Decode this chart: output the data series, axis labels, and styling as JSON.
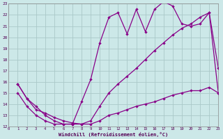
{
  "xlabel": "Windchill (Refroidissement éolien,°C)",
  "bg_color": "#cce8e8",
  "grid_color": "#aac8c8",
  "line_color": "#880088",
  "x_min": 0,
  "x_max": 23,
  "y_min": 12,
  "y_max": 23,
  "line1_x": [
    1,
    2,
    3,
    4,
    5,
    6,
    7,
    8,
    9,
    10,
    11,
    12,
    13,
    14,
    15,
    16,
    17,
    18,
    19,
    20,
    21,
    22,
    23
  ],
  "line1_y": [
    15.8,
    14.5,
    13.8,
    13.0,
    12.5,
    12.2,
    12.2,
    14.2,
    16.2,
    19.5,
    21.8,
    22.2,
    20.3,
    22.5,
    20.5,
    22.5,
    23.2,
    22.8,
    21.2,
    21.0,
    21.2,
    22.2,
    17.2
  ],
  "line2_x": [
    1,
    2,
    3,
    4,
    5,
    6,
    7,
    8,
    9,
    10,
    11,
    12,
    13,
    14,
    15,
    16,
    17,
    18,
    19,
    20,
    21,
    22,
    23
  ],
  "line2_y": [
    15.8,
    14.5,
    13.5,
    13.2,
    12.8,
    12.5,
    12.3,
    12.2,
    12.5,
    13.8,
    15.0,
    15.8,
    16.5,
    17.2,
    18.0,
    18.8,
    19.5,
    20.2,
    20.8,
    21.2,
    21.8,
    22.2,
    15.0
  ],
  "line3_x": [
    1,
    2,
    3,
    4,
    5,
    6,
    7,
    8,
    9,
    10,
    11,
    12,
    13,
    14,
    15,
    16,
    17,
    18,
    19,
    20,
    21,
    22,
    23
  ],
  "line3_y": [
    15.0,
    13.8,
    13.0,
    12.5,
    12.2,
    12.2,
    12.2,
    12.2,
    12.2,
    12.5,
    13.0,
    13.2,
    13.5,
    13.8,
    14.0,
    14.2,
    14.5,
    14.8,
    15.0,
    15.2,
    15.2,
    15.5,
    15.0
  ]
}
